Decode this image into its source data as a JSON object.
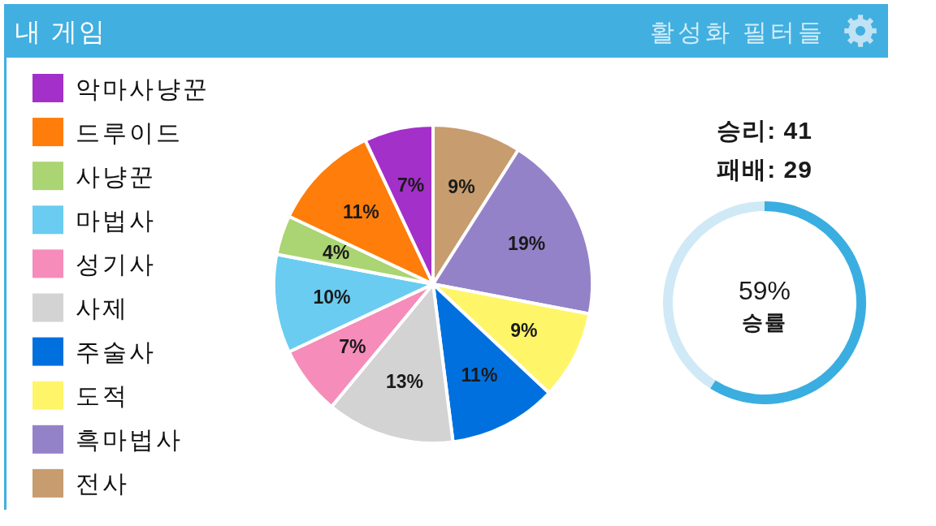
{
  "chart_data": [
    {
      "type": "pie",
      "title": "내 게임",
      "annotations": [
        "활성화 필터들"
      ],
      "categories": [
        "전사",
        "흑마법사",
        "도적",
        "주술사",
        "사제",
        "성기사",
        "마법사",
        "사냥꾼",
        "드루이드",
        "악마사냥꾼"
      ],
      "values": [
        9,
        19,
        9,
        11,
        13,
        7,
        10,
        4,
        11,
        7
      ],
      "colors": [
        "#c79c6e",
        "#9482c9",
        "#fff569",
        "#0070de",
        "#d3d3d3",
        "#f58cba",
        "#69ccf0",
        "#abd473",
        "#ff7d0a",
        "#a330c9"
      ],
      "value_labels": [
        "9%",
        "19%",
        "9%",
        "11%",
        "13%",
        "7%",
        "10%",
        "4%",
        "11%",
        "7%"
      ],
      "legend": "left"
    },
    {
      "type": "donut",
      "categories": [
        null,
        null
      ],
      "values": [
        59,
        41
      ],
      "colors": [
        "#3aaee0",
        "#d0e9f6"
      ],
      "annotations": [
        "승리: 41",
        "패배: 29",
        "59%",
        "승률"
      ]
    }
  ]
}
